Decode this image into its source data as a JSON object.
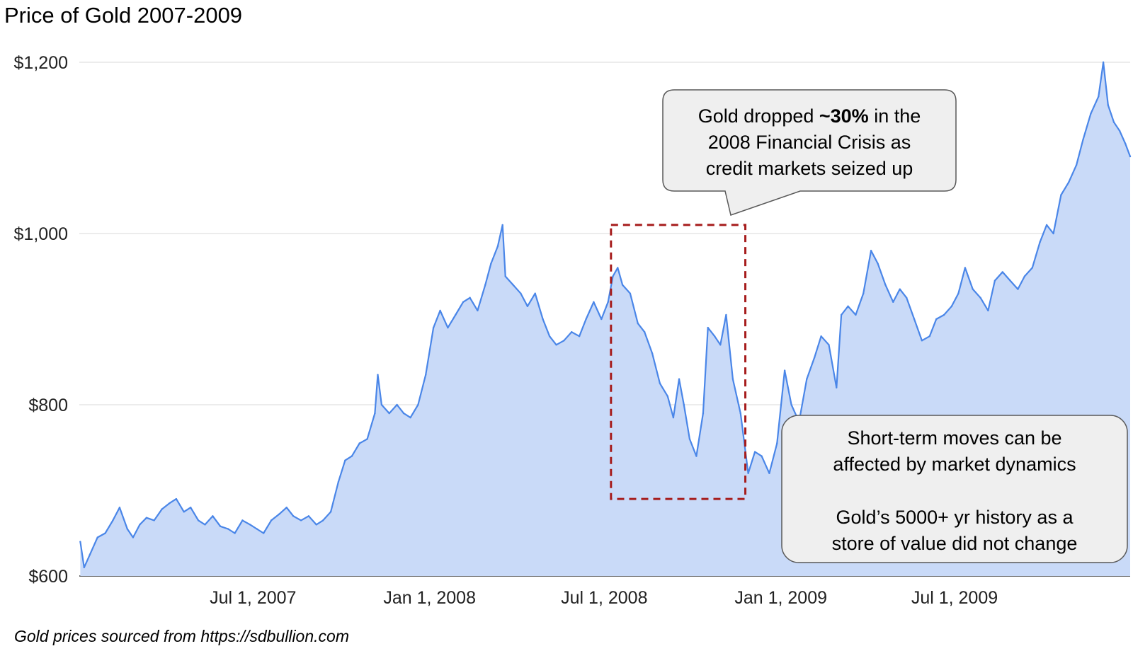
{
  "chart_data": {
    "type": "area",
    "title": "Price of Gold 2007-2009",
    "xlabel": "",
    "ylabel": "",
    "ylim": [
      600,
      1200
    ],
    "xlim": [
      "2007-01-01",
      "2009-12-31"
    ],
    "y_ticks": [
      {
        "value": 600,
        "label": "$600"
      },
      {
        "value": 800,
        "label": "$800"
      },
      {
        "value": 1000,
        "label": "$1,000"
      },
      {
        "value": 1200,
        "label": "$1,200"
      }
    ],
    "x_ticks": [
      {
        "date": "2007-07-01",
        "label": "Jul 1, 2007"
      },
      {
        "date": "2008-01-01",
        "label": "Jan 1, 2008"
      },
      {
        "date": "2008-07-01",
        "label": "Jul 1, 2008"
      },
      {
        "date": "2009-01-01",
        "label": "Jan 1, 2009"
      },
      {
        "date": "2009-07-01",
        "label": "Jul 1, 2009"
      }
    ],
    "grid": true,
    "line_color": "#4a86e8",
    "fill_color": "#c9daf8",
    "series": [
      {
        "x": [
          "2007-01-02",
          "2007-01-06",
          "2007-01-12",
          "2007-01-20",
          "2007-01-28",
          "2007-02-05",
          "2007-02-12",
          "2007-02-20",
          "2007-02-26",
          "2007-03-05",
          "2007-03-12",
          "2007-03-20",
          "2007-03-28",
          "2007-04-05",
          "2007-04-12",
          "2007-04-20",
          "2007-04-27",
          "2007-05-05",
          "2007-05-12",
          "2007-05-20",
          "2007-05-28",
          "2007-06-05",
          "2007-06-12",
          "2007-06-20",
          "2007-06-28",
          "2007-07-05",
          "2007-07-12",
          "2007-07-20",
          "2007-07-28",
          "2007-08-05",
          "2007-08-12",
          "2007-08-20",
          "2007-08-28",
          "2007-09-05",
          "2007-09-12",
          "2007-09-20",
          "2007-09-28",
          "2007-10-05",
          "2007-10-12",
          "2007-10-20",
          "2007-10-28",
          "2007-11-05",
          "2007-11-08",
          "2007-11-12",
          "2007-11-20",
          "2007-11-28",
          "2007-12-05",
          "2007-12-12",
          "2007-12-20",
          "2007-12-28",
          "2008-01-05",
          "2008-01-12",
          "2008-01-20",
          "2008-01-28",
          "2008-02-05",
          "2008-02-12",
          "2008-02-20",
          "2008-02-28",
          "2008-03-05",
          "2008-03-12",
          "2008-03-17",
          "2008-03-20",
          "2008-03-28",
          "2008-04-05",
          "2008-04-12",
          "2008-04-20",
          "2008-04-28",
          "2008-05-05",
          "2008-05-12",
          "2008-05-20",
          "2008-05-28",
          "2008-06-05",
          "2008-06-12",
          "2008-06-20",
          "2008-06-28",
          "2008-07-05",
          "2008-07-10",
          "2008-07-15",
          "2008-07-20",
          "2008-07-28",
          "2008-08-05",
          "2008-08-12",
          "2008-08-20",
          "2008-08-28",
          "2008-09-05",
          "2008-09-11",
          "2008-09-17",
          "2008-09-22",
          "2008-09-28",
          "2008-10-05",
          "2008-10-12",
          "2008-10-17",
          "2008-10-24",
          "2008-10-30",
          "2008-11-05",
          "2008-11-12",
          "2008-11-20",
          "2008-11-28",
          "2008-12-05",
          "2008-12-12",
          "2008-12-20",
          "2008-12-28",
          "2009-01-05",
          "2009-01-12",
          "2009-01-20",
          "2009-01-28",
          "2009-02-05",
          "2009-02-12",
          "2009-02-20",
          "2009-02-28",
          "2009-03-05",
          "2009-03-12",
          "2009-03-20",
          "2009-03-28",
          "2009-04-05",
          "2009-04-12",
          "2009-04-20",
          "2009-04-28",
          "2009-05-05",
          "2009-05-12",
          "2009-05-20",
          "2009-05-28",
          "2009-06-05",
          "2009-06-12",
          "2009-06-20",
          "2009-06-28",
          "2009-07-05",
          "2009-07-12",
          "2009-07-20",
          "2009-07-28",
          "2009-08-05",
          "2009-08-12",
          "2009-08-20",
          "2009-08-28",
          "2009-09-05",
          "2009-09-12",
          "2009-09-20",
          "2009-09-28",
          "2009-10-05",
          "2009-10-12",
          "2009-10-20",
          "2009-10-28",
          "2009-11-05",
          "2009-11-12",
          "2009-11-20",
          "2009-11-28",
          "2009-12-03",
          "2009-12-08",
          "2009-12-14",
          "2009-12-20",
          "2009-12-26",
          "2009-12-31"
        ],
        "values": [
          640,
          610,
          625,
          645,
          650,
          665,
          680,
          655,
          645,
          660,
          668,
          665,
          678,
          685,
          690,
          675,
          680,
          665,
          660,
          670,
          658,
          655,
          650,
          665,
          660,
          655,
          650,
          665,
          672,
          680,
          670,
          665,
          670,
          660,
          665,
          675,
          710,
          735,
          740,
          755,
          760,
          790,
          835,
          800,
          790,
          800,
          790,
          785,
          800,
          835,
          890,
          910,
          890,
          905,
          920,
          925,
          910,
          940,
          965,
          985,
          1010,
          950,
          940,
          930,
          915,
          930,
          900,
          880,
          870,
          875,
          885,
          880,
          900,
          920,
          900,
          920,
          950,
          960,
          940,
          930,
          895,
          885,
          860,
          825,
          810,
          785,
          830,
          800,
          760,
          740,
          790,
          890,
          880,
          870,
          905,
          830,
          790,
          720,
          745,
          740,
          720,
          755,
          840,
          800,
          780,
          830,
          855,
          880,
          870,
          820,
          905,
          915,
          905,
          930,
          980,
          965,
          940,
          920,
          935,
          925,
          900,
          875,
          880,
          900,
          905,
          915,
          930,
          960,
          935,
          925,
          910,
          945,
          955,
          945,
          935,
          950,
          960,
          990,
          1010,
          1000,
          1045,
          1060,
          1080,
          1110,
          1140,
          1160,
          1200,
          1150,
          1130,
          1120,
          1105,
          1090
        ]
      }
    ],
    "annotations": [
      {
        "text_before": "Gold dropped ",
        "text_bold": "~30%",
        "text_after": " in the",
        "line2": "2008 Financial Crisis as",
        "line3": "credit markets seized up"
      },
      {
        "line1": "Short-term moves can be",
        "line2": "affected by market dynamics",
        "line3": "Gold’s 5000+ yr history as a",
        "line4": "store of value did not change"
      }
    ],
    "highlight_range": {
      "x_start": "2008-07-08",
      "x_end": "2008-11-25",
      "y_low": 690,
      "y_high": 1010
    },
    "footnote": "Gold prices sourced from https://sdbullion.com"
  }
}
